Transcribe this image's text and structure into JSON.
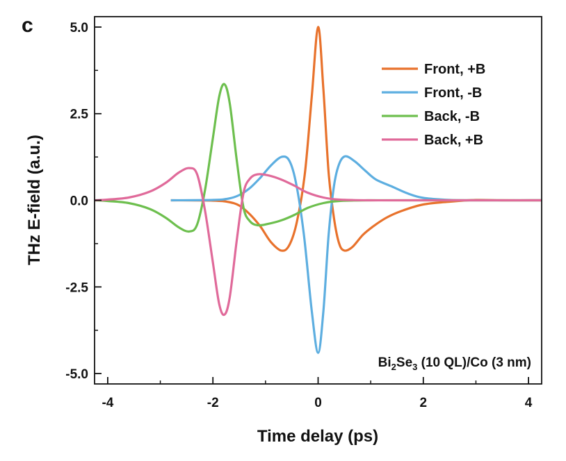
{
  "panel_label": "c",
  "chart_data": {
    "type": "line",
    "xlabel": "Time delay (ps)",
    "ylabel": "THz E-field (a.u.)",
    "xlim": [
      -4.25,
      4.25
    ],
    "ylim": [
      -5.3,
      5.3
    ],
    "xticks": [
      -4,
      -2,
      0,
      2,
      4
    ],
    "xtick_labels": [
      "-4",
      "-2",
      "0",
      "2",
      "4"
    ],
    "xminor": [
      -3,
      -1,
      1,
      3
    ],
    "yticks": [
      5.0,
      2.5,
      0.0,
      -2.5,
      -5.0
    ],
    "ytick_labels": [
      "5.0",
      "2.5",
      "0.0",
      "-2.5",
      "-5.0"
    ],
    "yminor": [
      3.75,
      1.25,
      -1.25,
      -3.75
    ],
    "grid": false,
    "legend_position": "top-right",
    "annotation": {
      "base": "Bi",
      "sub1": "2",
      "mid": "Se",
      "sub2": "3",
      "rest": " (10 QL)/Co (3 nm)"
    },
    "series": [
      {
        "name": "Front, +B",
        "color": "#E8722C",
        "points": [
          [
            -2.8,
            0
          ],
          [
            -2.0,
            -0.01
          ],
          [
            -1.7,
            -0.05
          ],
          [
            -1.5,
            -0.15
          ],
          [
            -1.3,
            -0.4
          ],
          [
            -1.1,
            -0.75
          ],
          [
            -0.9,
            -1.2
          ],
          [
            -0.7,
            -1.45
          ],
          [
            -0.55,
            -1.3
          ],
          [
            -0.4,
            -0.6
          ],
          [
            -0.25,
            0.8
          ],
          [
            -0.12,
            3.0
          ],
          [
            0,
            5.0
          ],
          [
            0.1,
            3.2
          ],
          [
            0.2,
            0.8
          ],
          [
            0.3,
            -0.5
          ],
          [
            0.4,
            -1.25
          ],
          [
            0.5,
            -1.45
          ],
          [
            0.65,
            -1.35
          ],
          [
            0.85,
            -1.0
          ],
          [
            1.05,
            -0.75
          ],
          [
            1.3,
            -0.5
          ],
          [
            1.6,
            -0.3
          ],
          [
            2.0,
            -0.12
          ],
          [
            2.5,
            -0.04
          ],
          [
            3.0,
            0.01
          ],
          [
            3.5,
            0.0
          ],
          [
            4.25,
            0.0
          ]
        ]
      },
      {
        "name": "Front, -B",
        "color": "#5DAEE0",
        "points": [
          [
            -2.8,
            0
          ],
          [
            -2.0,
            0.01
          ],
          [
            -1.7,
            0.05
          ],
          [
            -1.5,
            0.15
          ],
          [
            -1.3,
            0.35
          ],
          [
            -1.1,
            0.65
          ],
          [
            -0.9,
            1.0
          ],
          [
            -0.7,
            1.25
          ],
          [
            -0.55,
            1.15
          ],
          [
            -0.42,
            0.5
          ],
          [
            -0.27,
            -1.0
          ],
          [
            -0.12,
            -3.2
          ],
          [
            0,
            -4.4
          ],
          [
            0.1,
            -3.2
          ],
          [
            0.2,
            -1.0
          ],
          [
            0.3,
            0.4
          ],
          [
            0.4,
            1.05
          ],
          [
            0.52,
            1.27
          ],
          [
            0.7,
            1.12
          ],
          [
            0.9,
            0.85
          ],
          [
            1.1,
            0.6
          ],
          [
            1.4,
            0.4
          ],
          [
            1.7,
            0.2
          ],
          [
            2.0,
            0.07
          ],
          [
            2.5,
            0.01
          ],
          [
            3.0,
            0.0
          ],
          [
            4.25,
            0.0
          ]
        ]
      },
      {
        "name": "Back, -B",
        "color": "#6DBF4E",
        "points": [
          [
            -4.25,
            0
          ],
          [
            -4.0,
            -0.02
          ],
          [
            -3.6,
            -0.08
          ],
          [
            -3.2,
            -0.25
          ],
          [
            -2.9,
            -0.5
          ],
          [
            -2.65,
            -0.78
          ],
          [
            -2.45,
            -0.9
          ],
          [
            -2.3,
            -0.7
          ],
          [
            -2.15,
            0.3
          ],
          [
            -2.0,
            1.8
          ],
          [
            -1.88,
            3.0
          ],
          [
            -1.78,
            3.35
          ],
          [
            -1.68,
            2.8
          ],
          [
            -1.55,
            1.2
          ],
          [
            -1.42,
            -0.2
          ],
          [
            -1.3,
            -0.6
          ],
          [
            -1.15,
            -0.72
          ],
          [
            -0.95,
            -0.68
          ],
          [
            -0.7,
            -0.58
          ],
          [
            -0.45,
            -0.42
          ],
          [
            -0.2,
            -0.22
          ],
          [
            0.1,
            -0.08
          ],
          [
            0.4,
            -0.02
          ],
          [
            1.0,
            0.0
          ],
          [
            2.0,
            0.0
          ],
          [
            4.25,
            0.0
          ]
        ]
      },
      {
        "name": "Back, +B",
        "color": "#E06A9A",
        "points": [
          [
            -4.25,
            0
          ],
          [
            -4.0,
            0.02
          ],
          [
            -3.6,
            0.08
          ],
          [
            -3.2,
            0.25
          ],
          [
            -2.9,
            0.5
          ],
          [
            -2.65,
            0.8
          ],
          [
            -2.45,
            0.93
          ],
          [
            -2.3,
            0.75
          ],
          [
            -2.15,
            -0.3
          ],
          [
            -2.0,
            -1.8
          ],
          [
            -1.88,
            -3.0
          ],
          [
            -1.78,
            -3.3
          ],
          [
            -1.68,
            -2.8
          ],
          [
            -1.55,
            -1.2
          ],
          [
            -1.42,
            0.2
          ],
          [
            -1.3,
            0.62
          ],
          [
            -1.15,
            0.75
          ],
          [
            -0.95,
            0.72
          ],
          [
            -0.7,
            0.6
          ],
          [
            -0.45,
            0.42
          ],
          [
            -0.2,
            0.22
          ],
          [
            0.1,
            0.08
          ],
          [
            0.4,
            0.02
          ],
          [
            1.0,
            0.0
          ],
          [
            2.0,
            0.0
          ],
          [
            4.25,
            0.0
          ]
        ]
      }
    ]
  }
}
